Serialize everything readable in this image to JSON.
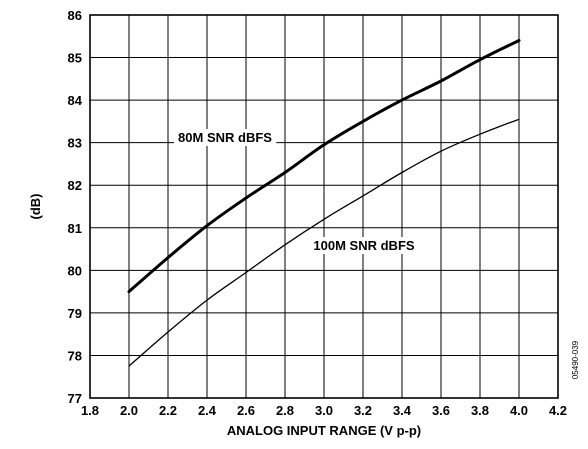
{
  "chart_data": {
    "type": "line",
    "xlabel": "ANALOG INPUT RANGE (V p-p)",
    "ylabel": "(dB)",
    "xlim": [
      1.8,
      4.2
    ],
    "ylim": [
      77,
      86
    ],
    "x_ticks": [
      "1.8",
      "2.0",
      "2.2",
      "2.4",
      "2.6",
      "2.8",
      "3.0",
      "3.2",
      "3.4",
      "3.6",
      "3.8",
      "4.0",
      "4.2"
    ],
    "y_ticks": [
      "77",
      "78",
      "79",
      "80",
      "81",
      "82",
      "83",
      "84",
      "85",
      "86"
    ],
    "grid": true,
    "series": [
      {
        "name": "80M SNR dBFS",
        "x": [
          2.0,
          2.2,
          2.4,
          2.6,
          2.8,
          3.0,
          3.2,
          3.4,
          3.6,
          3.8,
          4.0
        ],
        "values": [
          79.5,
          80.3,
          81.05,
          81.7,
          82.3,
          82.95,
          83.5,
          84.0,
          84.45,
          84.95,
          85.4
        ]
      },
      {
        "name": "100M SNR dBFS",
        "x": [
          2.0,
          2.2,
          2.4,
          2.6,
          2.8,
          3.0,
          3.2,
          3.4,
          3.6,
          3.8,
          4.0
        ],
        "values": [
          77.75,
          78.55,
          79.3,
          79.95,
          80.6,
          81.2,
          81.75,
          82.3,
          82.8,
          83.2,
          83.55
        ]
      }
    ],
    "figure_id": "05490-039"
  }
}
